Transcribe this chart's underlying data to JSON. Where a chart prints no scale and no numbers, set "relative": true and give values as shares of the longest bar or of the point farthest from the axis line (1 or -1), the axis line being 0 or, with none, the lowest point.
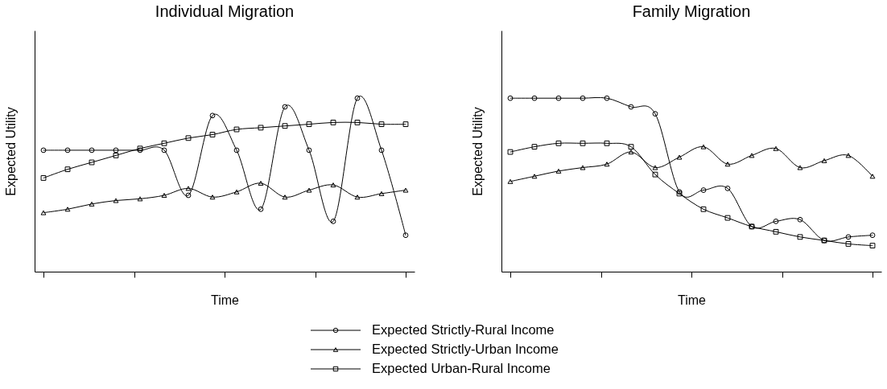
{
  "chart_data": [
    {
      "type": "line",
      "title": "Individual Migration",
      "xlabel": "Time",
      "ylabel": "Expected Utility",
      "relative": true,
      "tick_labels": false,
      "legend": "bottom",
      "line_style": "solid",
      "categories": [
        null,
        null,
        null,
        null,
        null,
        null,
        null,
        null,
        null,
        null,
        null,
        null,
        null,
        null,
        null,
        null
      ],
      "series": [
        {
          "name": "Expected Strictly-Rural Income",
          "color": "#000000",
          "marker": "circle",
          "values": [
            0.7,
            0.7,
            0.7,
            0.7,
            0.7,
            0.7,
            0.44,
            0.9,
            0.7,
            0.36,
            0.95,
            0.7,
            0.29,
            1,
            0.7,
            0.21
          ]
        },
        {
          "name": "Expected Strictly-Urban Income",
          "color": "#000000",
          "marker": "triangle",
          "values": [
            0.34,
            0.36,
            0.39,
            0.41,
            0.42,
            0.44,
            0.48,
            0.43,
            0.46,
            0.51,
            0.43,
            0.47,
            0.5,
            0.43,
            0.45,
            0.47
          ]
        },
        {
          "name": "Expected Urban-Rural Income",
          "color": "#000000",
          "marker": "square",
          "values": [
            0.54,
            0.59,
            0.63,
            0.67,
            0.71,
            0.74,
            0.77,
            0.79,
            0.82,
            0.83,
            0.84,
            0.85,
            0.86,
            0.86,
            0.85,
            0.85
          ]
        }
      ]
    },
    {
      "type": "line",
      "title": "Family Migration",
      "xlabel": "Time",
      "ylabel": "Expected Utility",
      "relative": true,
      "tick_labels": false,
      "legend": "bottom",
      "line_style": "solid",
      "categories": [
        null,
        null,
        null,
        null,
        null,
        null,
        null,
        null,
        null,
        null,
        null,
        null,
        null,
        null,
        null,
        null
      ],
      "series": [
        {
          "name": "Expected Strictly-Rural Income",
          "color": "#000000",
          "marker": "circle",
          "values": [
            1,
            1,
            1,
            1,
            1,
            0.95,
            0.91,
            0.46,
            0.47,
            0.48,
            0.26,
            0.29,
            0.3,
            0.18,
            0.2,
            0.21
          ]
        },
        {
          "name": "Expected Strictly-Urban Income",
          "color": "#000000",
          "marker": "triangle",
          "values": [
            0.52,
            0.55,
            0.58,
            0.6,
            0.62,
            0.69,
            0.6,
            0.66,
            0.72,
            0.62,
            0.67,
            0.71,
            0.6,
            0.64,
            0.67,
            0.55
          ]
        },
        {
          "name": "Expected Urban-Rural Income",
          "color": "#000000",
          "marker": "square",
          "values": [
            0.69,
            0.72,
            0.74,
            0.74,
            0.74,
            0.72,
            0.56,
            0.45,
            0.36,
            0.31,
            0.26,
            0.23,
            0.2,
            0.18,
            0.16,
            0.15
          ]
        }
      ]
    }
  ]
}
